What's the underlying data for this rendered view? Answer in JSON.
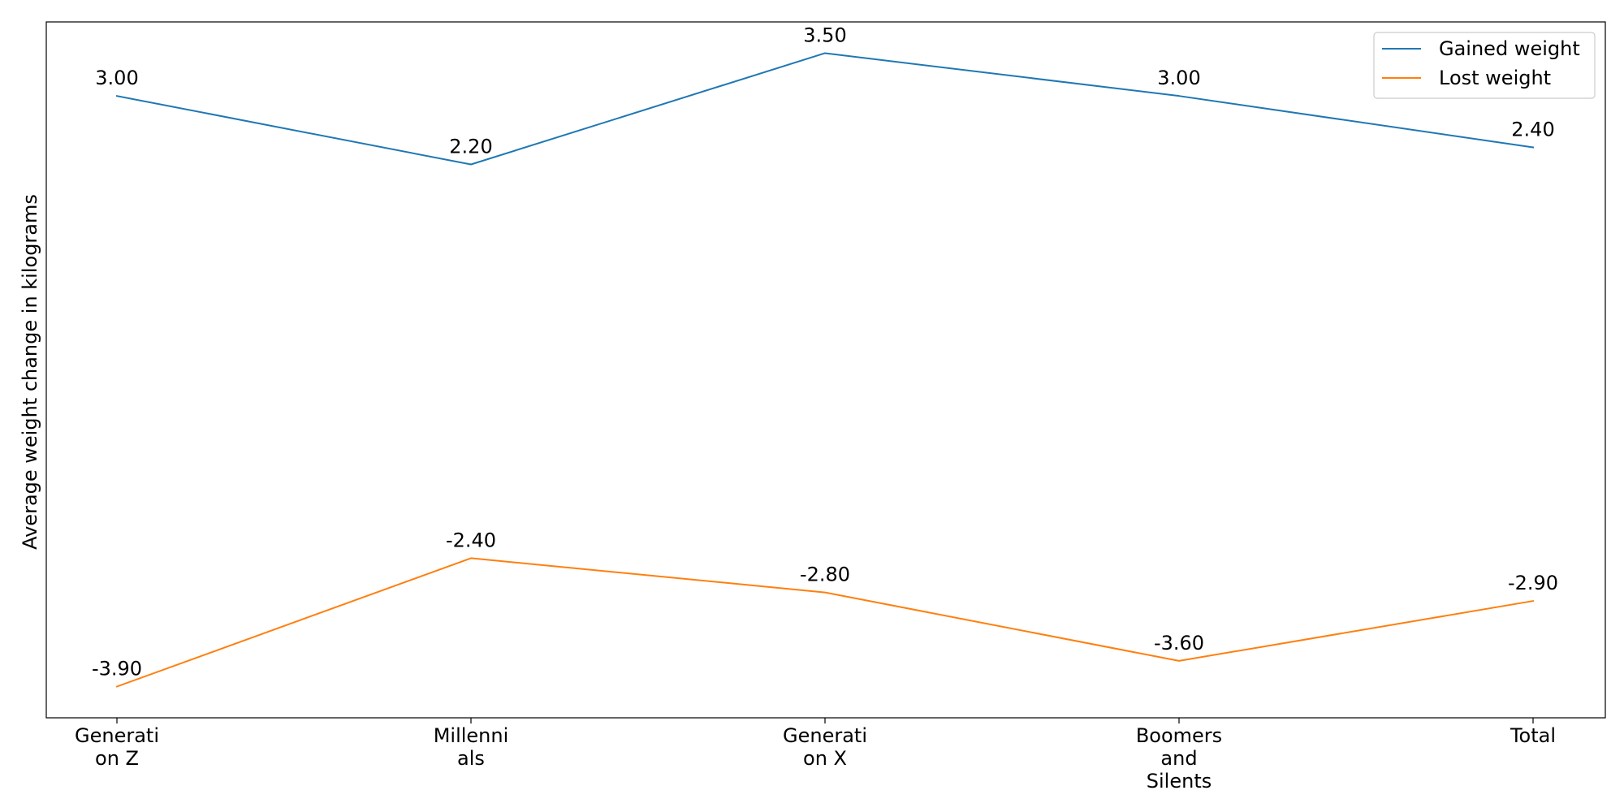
{
  "chart_data": {
    "type": "line",
    "title": "",
    "xlabel": "",
    "ylabel": "Average weight change in kilograms",
    "categories": [
      "Generation Z",
      "Millennials",
      "Generation X",
      "Boomers and Silents",
      "Total"
    ],
    "tick_labels": [
      [
        "Generati",
        "on Z"
      ],
      [
        "Millenni",
        "als"
      ],
      [
        "Generati",
        "on X"
      ],
      [
        "Boomers",
        "and",
        "Silents"
      ],
      [
        "Total"
      ]
    ],
    "series": [
      {
        "name": "Gained weight",
        "color": "#1f77b4",
        "values": [
          3.0,
          2.2,
          3.5,
          3.0,
          2.4
        ],
        "value_labels": [
          "3.00",
          "2.20",
          "3.50",
          "3.00",
          "2.40"
        ]
      },
      {
        "name": "Lost weight",
        "color": "#ff7f0e",
        "values": [
          -3.9,
          -2.4,
          -2.8,
          -3.6,
          -2.9
        ],
        "value_labels": [
          "-3.90",
          "-2.40",
          "-2.80",
          "-3.60",
          "-2.90"
        ]
      }
    ],
    "ylim": [
      -4.265,
      3.865
    ],
    "y_ticks_visible": false,
    "grid": false,
    "legend_position": "top-right"
  }
}
